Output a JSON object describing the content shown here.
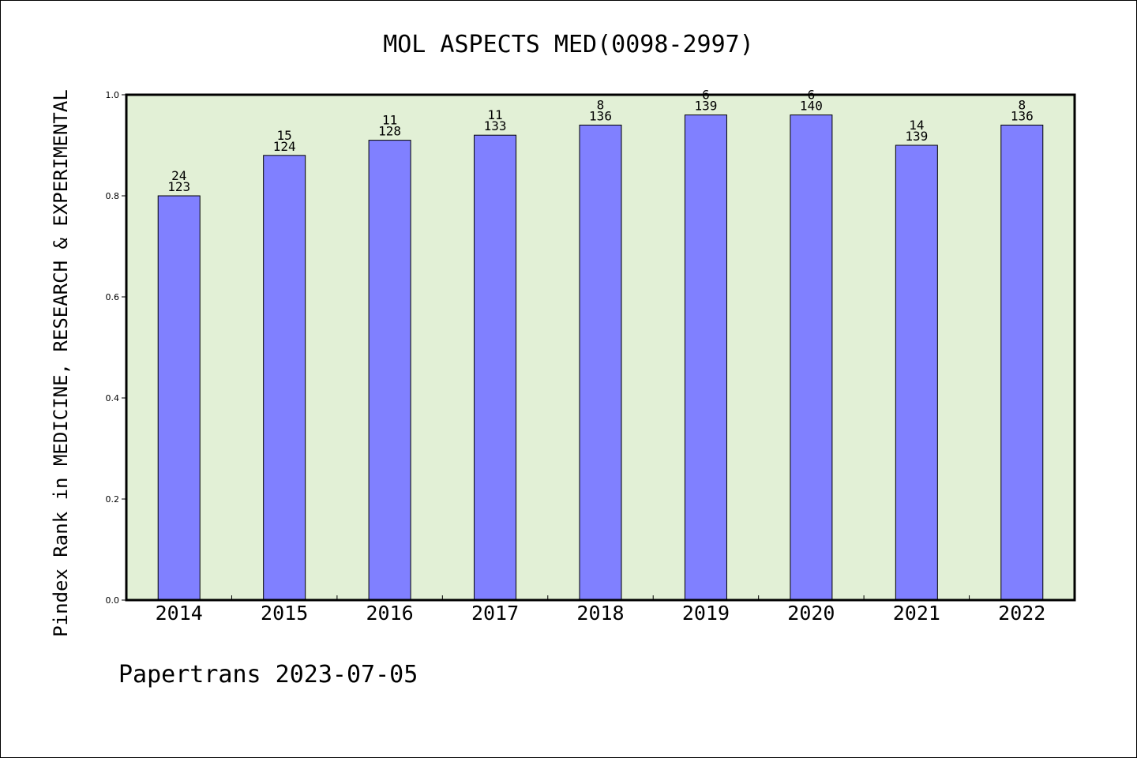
{
  "chart_data": {
    "type": "bar",
    "title": "MOL ASPECTS MED(0098-2997)",
    "ylabel": "Pindex Rank in MEDICINE, RESEARCH & EXPERIMENTAL",
    "xlabel": "",
    "categories": [
      "2014",
      "2015",
      "2016",
      "2017",
      "2018",
      "2019",
      "2020",
      "2021",
      "2022"
    ],
    "values": [
      0.8,
      0.88,
      0.91,
      0.92,
      0.94,
      0.96,
      0.96,
      0.9,
      0.94
    ],
    "rank_labels": [
      "24",
      "15",
      "11",
      "11",
      "8",
      "6",
      "6",
      "14",
      "8"
    ],
    "total_labels": [
      "123",
      "124",
      "128",
      "133",
      "136",
      "139",
      "140",
      "139",
      "136"
    ],
    "ylim": [
      0,
      1.0
    ],
    "yticks": [
      "0.0",
      "0.2",
      "0.4",
      "0.6",
      "0.8",
      "1.0"
    ],
    "grid": false,
    "legend": "none",
    "colors": {
      "bar": "#8080ff",
      "plot_background": "#e2f0d6",
      "bar_edge": "#000000"
    }
  },
  "footer": "Papertrans 2023-07-05"
}
